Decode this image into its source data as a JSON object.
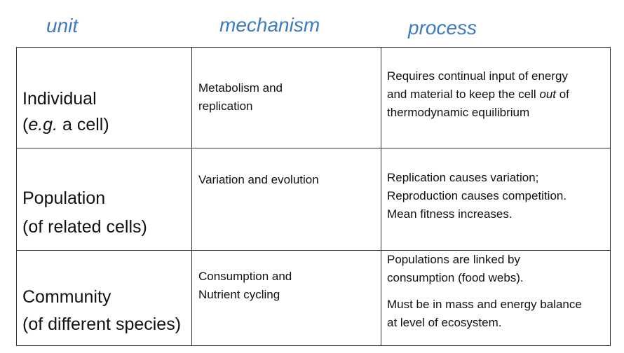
{
  "headers": {
    "unit": "unit",
    "mechanism": "mechanism",
    "process": "process"
  },
  "rows": [
    {
      "unit_name": "Individual",
      "unit_sub_prefix": "(",
      "unit_sub_italic": "e.g.",
      "unit_sub_suffix": " a cell)",
      "mechanism": [
        "Metabolism and",
        "replication"
      ],
      "process_line1": "Requires continual input of energy",
      "process_line2_prefix": "and material to keep the cell ",
      "process_line2_italic": "out",
      "process_line2_suffix": " of",
      "process_line3": "thermodynamic equilibrium"
    },
    {
      "unit_name": "Population",
      "unit_sub": "(of related cells)",
      "mechanism": [
        "Variation and evolution"
      ],
      "process": [
        "Replication causes variation;",
        "Reproduction causes competition.",
        "Mean fitness increases."
      ]
    },
    {
      "unit_name": "Community",
      "unit_sub": "(of different species)",
      "mechanism": [
        "Consumption and",
        "Nutrient cycling"
      ],
      "process": [
        "Populations are linked by",
        "consumption (food webs).",
        "",
        "Must be in mass and energy balance",
        "at level of ecosystem."
      ]
    }
  ]
}
